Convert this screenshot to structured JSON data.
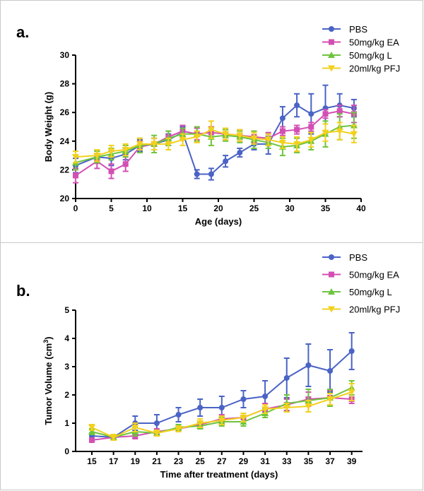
{
  "chart_data": [
    {
      "type": "line",
      "panel_label": "a.",
      "xlabel": "Age (days)",
      "ylabel": "Body Weight (g)",
      "xlim": [
        0,
        40
      ],
      "ylim": [
        20,
        30
      ],
      "xticks": [
        "0",
        "5",
        "10",
        "15",
        "20",
        "25",
        "30",
        "35",
        "40"
      ],
      "yticks": [
        "20",
        "22",
        "24",
        "26",
        "28",
        "30"
      ],
      "x": [
        0,
        3,
        5,
        7,
        9,
        11,
        13,
        15,
        17,
        19,
        21,
        23,
        25,
        27,
        29,
        31,
        33,
        35,
        37,
        39
      ],
      "legend_position": "top-right",
      "grid": false,
      "series": [
        {
          "name": "PBS",
          "color": "#4a63c5",
          "marker": "circle",
          "values": [
            22.3,
            22.9,
            22.8,
            23.1,
            23.7,
            23.8,
            24.1,
            24.6,
            21.7,
            21.7,
            22.6,
            23.2,
            23.8,
            23.8,
            25.6,
            26.5,
            25.9,
            26.3,
            26.5,
            26.3
          ],
          "errors": [
            0.5,
            0.4,
            0.5,
            0.4,
            0.4,
            0.4,
            0.4,
            0.4,
            0.3,
            0.4,
            0.4,
            0.3,
            0.4,
            0.7,
            0.8,
            0.8,
            1.4,
            1.6,
            0.8,
            0.6
          ]
        },
        {
          "name": "50mg/kg EA",
          "color": "#d34fb3",
          "marker": "square",
          "values": [
            21.6,
            22.6,
            21.9,
            22.4,
            23.6,
            23.8,
            24.3,
            24.7,
            24.5,
            24.6,
            24.5,
            24.4,
            24.3,
            24.2,
            24.7,
            24.8,
            25.0,
            25.9,
            26.1,
            25.9
          ],
          "errors": [
            0.5,
            0.5,
            0.5,
            0.5,
            0.4,
            0.4,
            0.4,
            0.4,
            0.4,
            0.4,
            0.4,
            0.4,
            0.4,
            0.4,
            0.3,
            0.3,
            0.3,
            0.3,
            0.4,
            0.6
          ]
        },
        {
          "name": "50mg/kg L",
          "color": "#6ec43e",
          "marker": "triangle-up",
          "values": [
            22.5,
            22.9,
            23.1,
            23.3,
            23.7,
            23.8,
            24.2,
            24.5,
            24.5,
            24.3,
            24.4,
            24.3,
            24.1,
            23.9,
            23.6,
            23.7,
            24.0,
            24.5,
            25.0,
            25.1
          ],
          "errors": [
            0.5,
            0.4,
            0.4,
            0.4,
            0.5,
            0.6,
            0.5,
            0.4,
            0.5,
            0.6,
            0.4,
            0.4,
            0.6,
            0.4,
            0.6,
            0.5,
            0.6,
            0.9,
            0.9,
            0.9
          ]
        },
        {
          "name": "20ml/kg PFJ",
          "color": "#f2d11e",
          "marker": "triangle-down",
          "values": [
            22.9,
            23.0,
            23.3,
            23.4,
            23.8,
            23.8,
            23.8,
            24.1,
            24.3,
            24.8,
            24.5,
            24.4,
            24.2,
            24.1,
            23.9,
            23.8,
            24.1,
            24.6,
            24.7,
            24.5
          ],
          "errors": [
            0.4,
            0.4,
            0.4,
            0.4,
            0.4,
            0.4,
            0.4,
            0.4,
            0.4,
            0.6,
            0.4,
            0.4,
            0.4,
            0.4,
            0.4,
            0.5,
            0.5,
            0.6,
            0.6,
            0.6
          ]
        }
      ]
    },
    {
      "type": "line",
      "panel_label": "b.",
      "xlabel": "Time after treatment (days)",
      "ylabel_main": "Tumor Volume (cm",
      "ylabel_sup": "3",
      "ylabel_end": ")",
      "xlim": [
        13.5,
        40
      ],
      "ylim": [
        0,
        5
      ],
      "xticks": [
        "15",
        "17",
        "19",
        "21",
        "23",
        "25",
        "27",
        "29",
        "31",
        "33",
        "35",
        "37",
        "39"
      ],
      "yticks": [
        "0",
        "1",
        "2",
        "3",
        "4",
        "5"
      ],
      "x": [
        15,
        17,
        19,
        21,
        23,
        25,
        27,
        29,
        31,
        33,
        35,
        37,
        39
      ],
      "legend_position": "top-right",
      "grid": false,
      "series": [
        {
          "name": "PBS",
          "color": "#4a63c5",
          "marker": "circle",
          "values": [
            0.55,
            0.5,
            1.0,
            1.0,
            1.3,
            1.55,
            1.55,
            1.85,
            1.95,
            2.6,
            3.05,
            2.85,
            3.55
          ],
          "errors": [
            0.1,
            0.1,
            0.25,
            0.3,
            0.25,
            0.3,
            0.4,
            0.3,
            0.55,
            0.7,
            0.75,
            0.75,
            0.65
          ]
        },
        {
          "name": "50mg/kg EA",
          "color": "#d34fb3",
          "marker": "square",
          "values": [
            0.4,
            0.5,
            0.55,
            0.7,
            0.8,
            0.95,
            1.15,
            1.2,
            1.5,
            1.65,
            1.85,
            1.9,
            1.85
          ],
          "errors": [
            0.05,
            0.05,
            0.1,
            0.1,
            0.1,
            0.1,
            0.15,
            0.15,
            0.2,
            0.2,
            0.25,
            0.25,
            0.15
          ]
        },
        {
          "name": "50mg/kg L",
          "color": "#6ec43e",
          "marker": "triangle-up",
          "values": [
            0.7,
            0.5,
            0.7,
            0.65,
            0.85,
            0.9,
            1.05,
            1.05,
            1.35,
            1.7,
            1.8,
            1.9,
            2.25
          ],
          "errors": [
            0.1,
            0.1,
            0.15,
            0.1,
            0.1,
            0.1,
            0.15,
            0.15,
            0.15,
            0.3,
            0.4,
            0.3,
            0.25
          ]
        },
        {
          "name": "20ml/kg PFJ",
          "color": "#f2d11e",
          "marker": "triangle-down",
          "values": [
            0.85,
            0.5,
            0.85,
            0.65,
            0.8,
            1.0,
            1.1,
            1.2,
            1.5,
            1.55,
            1.6,
            1.85,
            2.1
          ],
          "errors": [
            0.1,
            0.1,
            0.15,
            0.1,
            0.1,
            0.15,
            0.15,
            0.15,
            0.15,
            0.15,
            0.2,
            0.2,
            0.3
          ]
        }
      ]
    }
  ]
}
